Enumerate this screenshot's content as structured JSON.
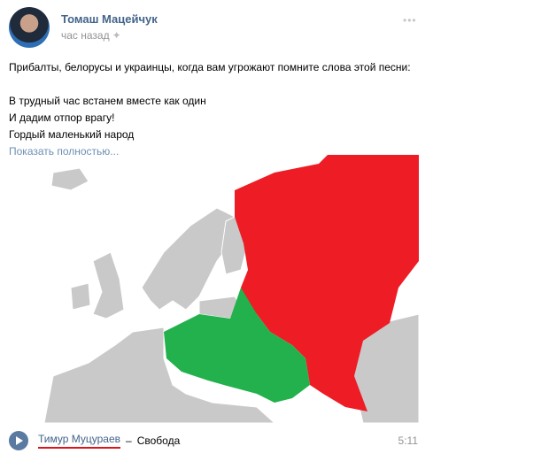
{
  "post": {
    "author": "Томаш Мацейчук",
    "time": "час назад",
    "more_icon": "ellipsis-icon",
    "lines": [
      "Прибалты, белорусы и украинцы, когда вам угрожают помните слова этой песни:",
      "",
      "В трудный час встанем вместе как один",
      "И дадим отпор врагу!",
      "Гордый маленький народ"
    ],
    "show_more": "Показать полностью..."
  },
  "map": {
    "colors": {
      "land": "#c9c9c9",
      "russia": "#ee1c25",
      "alliance": "#22b14c"
    }
  },
  "audio": {
    "artist": "Тимур Муцураев",
    "dash": "–",
    "title": "Свобода",
    "duration": "5:11",
    "accent": "#d9161c"
  }
}
